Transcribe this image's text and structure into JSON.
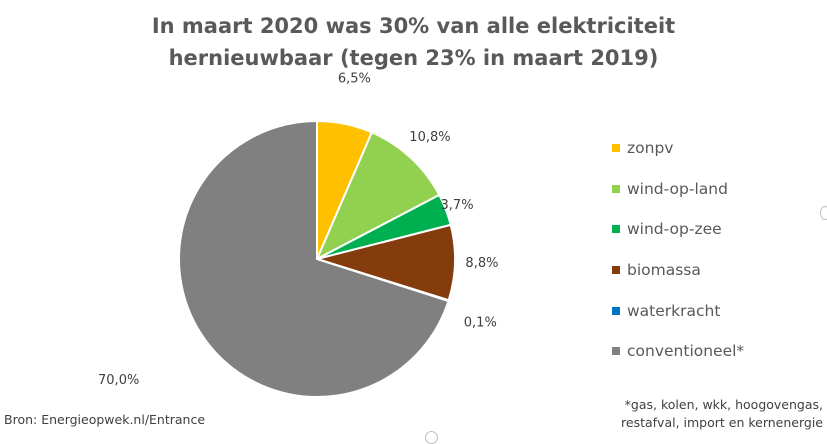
{
  "title": {
    "line1": "In maart 2020 was 30% van alle elektriciteit",
    "line2": "hernieuwbaar (tegen 23% in maart 2019)"
  },
  "source": "Bron: Energieopwek.nl/Entrance",
  "footnote": {
    "line1": "*gas, kolen, wkk, hoogovengas,",
    "line2": "restafval, import en kernenergie"
  },
  "chart_data": {
    "type": "pie",
    "title": "In maart 2020 was 30% van alle elektriciteit hernieuwbaar (tegen 23% in maart 2019)",
    "legend_position": "right",
    "slices": [
      {
        "label": "zonpv",
        "value": 6.5,
        "display": "6,5%",
        "color": "#FFC000"
      },
      {
        "label": "wind-op-land",
        "value": 10.8,
        "display": "10,8%",
        "color": "#92D050"
      },
      {
        "label": "wind-op-zee",
        "value": 3.7,
        "display": "3,7%",
        "color": "#00B050"
      },
      {
        "label": "biomassa",
        "value": 8.8,
        "display": "8,8%",
        "color": "#843C0C"
      },
      {
        "label": "waterkracht",
        "value": 0.1,
        "display": "0,1%",
        "color": "#0070C0"
      },
      {
        "label": "conventioneel*",
        "value": 70.0,
        "display": "70,0%",
        "color": "#808080"
      }
    ]
  }
}
